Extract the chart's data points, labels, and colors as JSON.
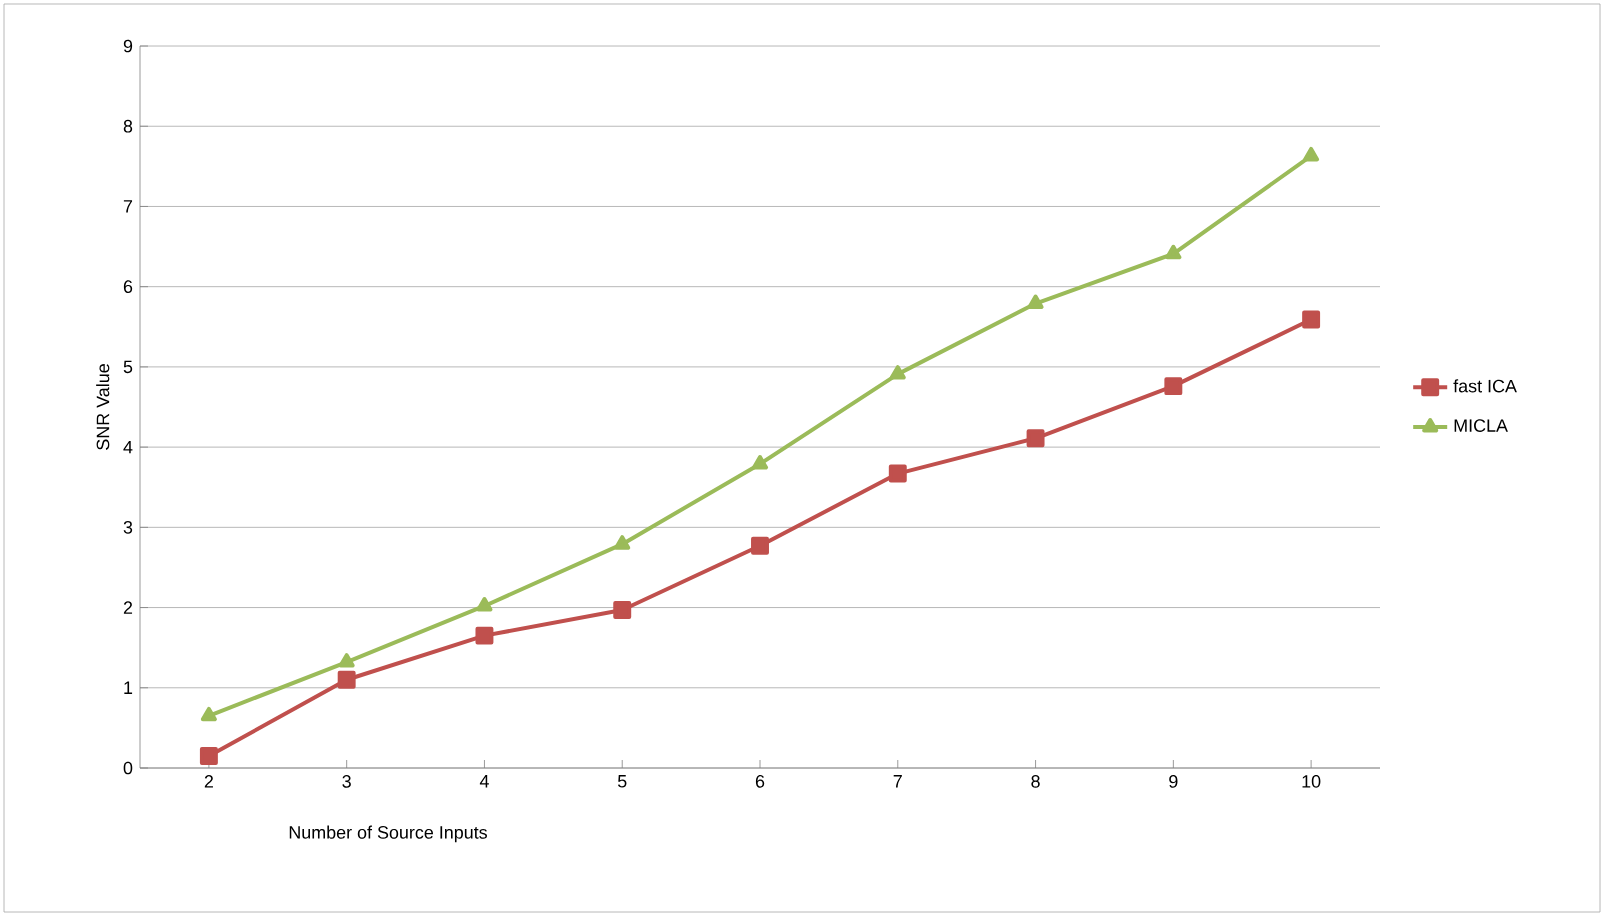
{
  "chart_data": {
    "type": "line",
    "xlabel": "Number of Source Inputs",
    "ylabel": "SNR Value",
    "categories": [
      "2",
      "3",
      "4",
      "5",
      "6",
      "7",
      "8",
      "9",
      "10"
    ],
    "series": [
      {
        "name": "fast ICA",
        "color": "#c0504d",
        "marker": "square",
        "values": [
          0.15,
          1.1,
          1.65,
          1.97,
          2.77,
          3.67,
          4.11,
          4.76,
          5.59
        ]
      },
      {
        "name": "MICLA",
        "color": "#9bbb59",
        "marker": "triangle",
        "values": [
          0.65,
          1.32,
          2.02,
          2.79,
          3.79,
          4.91,
          5.79,
          6.41,
          7.63
        ]
      }
    ],
    "ylim": [
      0,
      9
    ],
    "yticks": [
      0,
      1,
      2,
      3,
      4,
      5,
      6,
      7,
      8,
      9
    ],
    "grid": "y",
    "legend": "right"
  }
}
